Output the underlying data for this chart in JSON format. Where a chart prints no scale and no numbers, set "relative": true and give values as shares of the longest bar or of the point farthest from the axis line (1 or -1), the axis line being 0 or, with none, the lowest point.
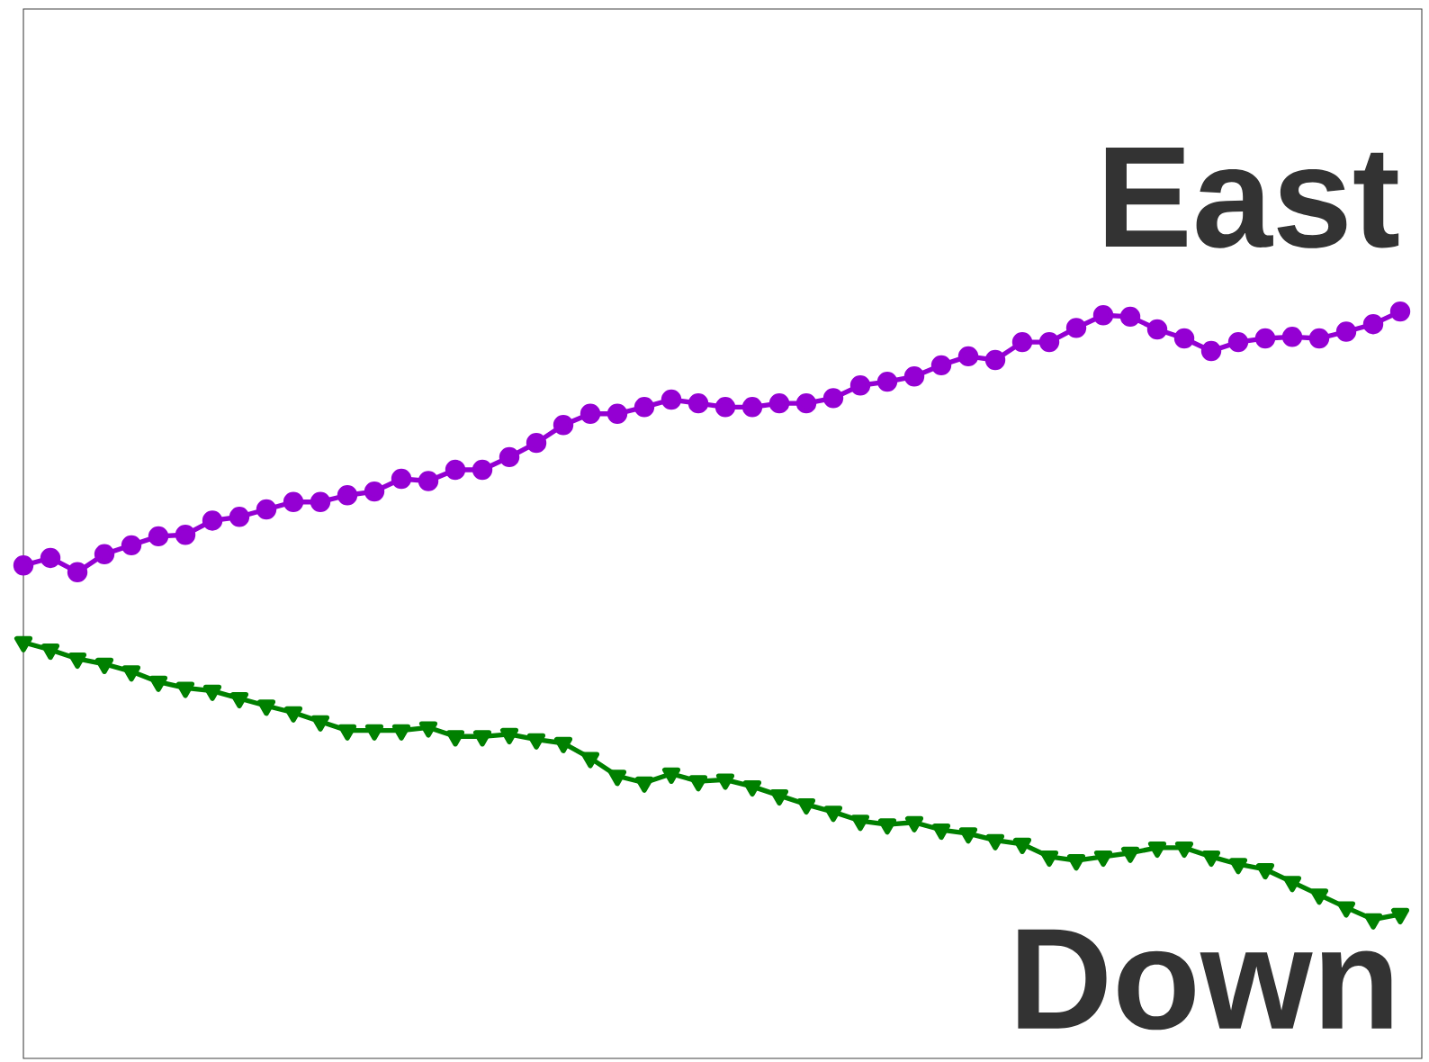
{
  "chart_data": {
    "type": "line",
    "relative": true,
    "legend": false,
    "categories": [
      null,
      null,
      null,
      null,
      null,
      null,
      null,
      null,
      null,
      null,
      null,
      null,
      null,
      null,
      null,
      null,
      null,
      null,
      null,
      null,
      null,
      null,
      null,
      null,
      null,
      null,
      null,
      null,
      null,
      null,
      null,
      null,
      null,
      null,
      null,
      null,
      null,
      null,
      null,
      null,
      null,
      null,
      null,
      null,
      null,
      null,
      null,
      null,
      null,
      null,
      null,
      null
    ],
    "series": [
      {
        "name": "East",
        "color": "#9400d3",
        "marker": "circle",
        "values": [
          0.66,
          0.67,
          0.651,
          0.675,
          0.687,
          0.699,
          0.701,
          0.72,
          0.725,
          0.735,
          0.745,
          0.745,
          0.754,
          0.759,
          0.776,
          0.773,
          0.788,
          0.788,
          0.805,
          0.824,
          0.848,
          0.863,
          0.863,
          0.872,
          0.882,
          0.877,
          0.872,
          0.872,
          0.877,
          0.877,
          0.884,
          0.901,
          0.906,
          0.913,
          0.928,
          0.94,
          0.935,
          0.959,
          0.959,
          0.978,
          0.995,
          0.993,
          0.976,
          0.964,
          0.947,
          0.959,
          0.964,
          0.966,
          0.964,
          0.973,
          0.983,
          1
        ]
      },
      {
        "name": "Down",
        "color": "#008000",
        "marker": "triangle",
        "values": [
          0.557,
          0.547,
          0.535,
          0.528,
          0.518,
          0.504,
          0.496,
          0.492,
          0.482,
          0.472,
          0.463,
          0.451,
          0.439,
          0.439,
          0.439,
          0.443,
          0.431,
          0.431,
          0.434,
          0.427,
          0.422,
          0.402,
          0.378,
          0.369,
          0.381,
          0.371,
          0.373,
          0.364,
          0.352,
          0.34,
          0.33,
          0.318,
          0.313,
          0.316,
          0.306,
          0.301,
          0.292,
          0.287,
          0.27,
          0.265,
          0.27,
          0.275,
          0.282,
          0.282,
          0.27,
          0.26,
          0.253,
          0.236,
          0.219,
          0.202,
          0.186,
          0.193
        ]
      }
    ]
  }
}
